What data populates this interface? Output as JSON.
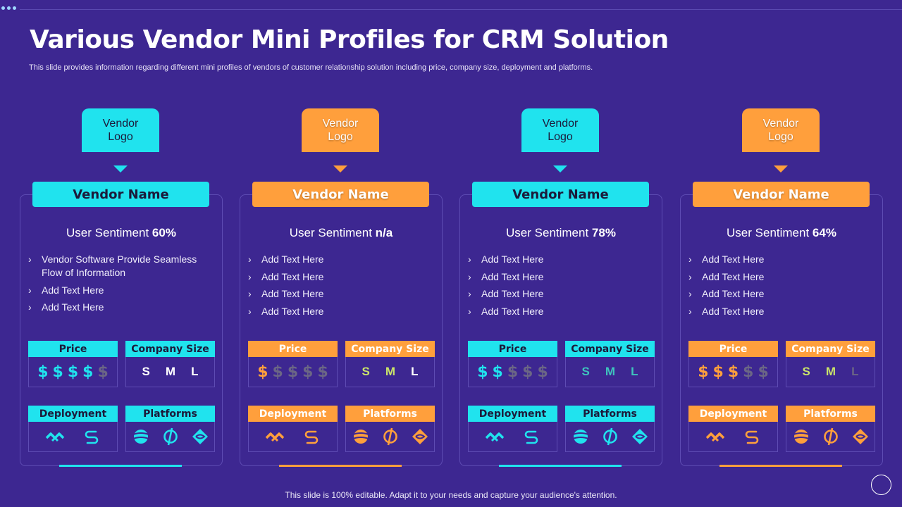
{
  "title": "Various Vendor Mini Profiles for CRM Solution",
  "subtitle": "This slide provides information regarding different mini profiles of vendors of customer relationship solution including price, company size, deployment and platforms.",
  "footer": "This slide is 100% editable. Adapt it to your needs and capture your audience's attention.",
  "colors": {
    "background": "#3d2791",
    "cyan": "#20e3ee",
    "orange": "#ff9f3c",
    "muted": "#6b6685"
  },
  "labels": {
    "price": "Price",
    "company_size": "Company Size",
    "deployment": "Deployment",
    "platforms": "Platforms",
    "sentiment": "User Sentiment",
    "sizes": [
      "S",
      "M",
      "L"
    ],
    "dollar": "$"
  },
  "vendors": [
    {
      "theme": "cyan",
      "logo_line1": "Vendor",
      "logo_line2": "Logo",
      "name": "Vendor Name",
      "sentiment": "60%",
      "bullets": [
        "Vendor Software Provide Seamless Flow of Information",
        "Add Text Here",
        "Add Text Here"
      ],
      "price_level": 4,
      "sizes_active": [
        true,
        true,
        true
      ],
      "deployment_icons": [
        "zigzag-icon",
        "s-curve-icon"
      ],
      "platform_icons": [
        "globe-icon",
        "circle-slash-icon",
        "diamond-swirl-icon"
      ]
    },
    {
      "theme": "orange",
      "logo_line1": "Vendor",
      "logo_line2": "Logo",
      "name": "Vendor Name",
      "sentiment": "n/a",
      "bullets": [
        "Add Text Here",
        "Add Text Here",
        "Add Text Here",
        "Add Text Here"
      ],
      "price_level": 1,
      "sizes_active": [
        true,
        true,
        true
      ],
      "deployment_icons": [
        "zigzag-icon",
        "s-curve-icon"
      ],
      "platform_icons": [
        "globe-icon",
        "circle-slash-icon",
        "diamond-swirl-icon"
      ]
    },
    {
      "theme": "cyan",
      "logo_line1": "Vendor",
      "logo_line2": "Logo",
      "name": "Vendor Name",
      "sentiment": "78%",
      "bullets": [
        "Add Text Here",
        "Add Text Here",
        "Add Text Here",
        "Add Text Here"
      ],
      "price_level": 2,
      "sizes_active": [
        true,
        true,
        true
      ],
      "deployment_icons": [
        "zigzag-icon",
        "s-curve-icon"
      ],
      "platform_icons": [
        "globe-icon",
        "circle-slash-icon",
        "diamond-swirl-icon"
      ]
    },
    {
      "theme": "orange",
      "logo_line1": "Vendor",
      "logo_line2": "Logo",
      "name": "Vendor Name",
      "sentiment": "64%",
      "bullets": [
        "Add Text Here",
        "Add Text Here",
        "Add Text Here",
        "Add Text Here"
      ],
      "price_level": 3,
      "sizes_active": [
        true,
        true,
        false
      ],
      "deployment_icons": [
        "zigzag-icon",
        "s-curve-icon"
      ],
      "platform_icons": [
        "globe-icon",
        "circle-slash-icon",
        "diamond-swirl-icon"
      ]
    }
  ]
}
